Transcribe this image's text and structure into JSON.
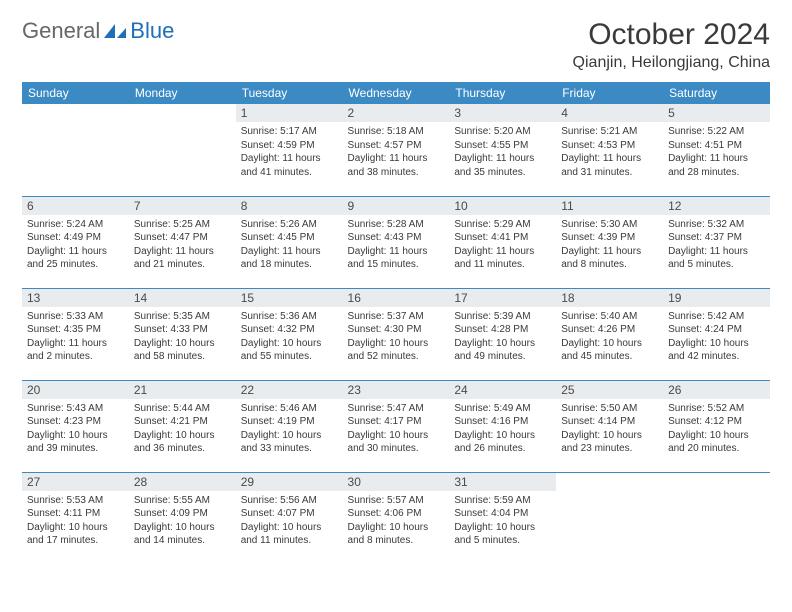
{
  "brand": {
    "part1": "General",
    "part2": "Blue"
  },
  "title": {
    "month": "October 2024",
    "location": "Qianjin, Heilongjiang, China"
  },
  "colors": {
    "header_bg": "#3b8ac4",
    "header_text": "#ffffff",
    "daynum_bg": "#e8ecef",
    "divider": "#3b8ac4",
    "brand_blue": "#1e6fb8",
    "brand_gray": "#676767"
  },
  "day_labels": [
    "Sunday",
    "Monday",
    "Tuesday",
    "Wednesday",
    "Thursday",
    "Friday",
    "Saturday"
  ],
  "weeks": [
    [
      {
        "n": "",
        "sr": "",
        "ss": "",
        "dl": ""
      },
      {
        "n": "",
        "sr": "",
        "ss": "",
        "dl": ""
      },
      {
        "n": "1",
        "sr": "Sunrise: 5:17 AM",
        "ss": "Sunset: 4:59 PM",
        "dl": "Daylight: 11 hours and 41 minutes."
      },
      {
        "n": "2",
        "sr": "Sunrise: 5:18 AM",
        "ss": "Sunset: 4:57 PM",
        "dl": "Daylight: 11 hours and 38 minutes."
      },
      {
        "n": "3",
        "sr": "Sunrise: 5:20 AM",
        "ss": "Sunset: 4:55 PM",
        "dl": "Daylight: 11 hours and 35 minutes."
      },
      {
        "n": "4",
        "sr": "Sunrise: 5:21 AM",
        "ss": "Sunset: 4:53 PM",
        "dl": "Daylight: 11 hours and 31 minutes."
      },
      {
        "n": "5",
        "sr": "Sunrise: 5:22 AM",
        "ss": "Sunset: 4:51 PM",
        "dl": "Daylight: 11 hours and 28 minutes."
      }
    ],
    [
      {
        "n": "6",
        "sr": "Sunrise: 5:24 AM",
        "ss": "Sunset: 4:49 PM",
        "dl": "Daylight: 11 hours and 25 minutes."
      },
      {
        "n": "7",
        "sr": "Sunrise: 5:25 AM",
        "ss": "Sunset: 4:47 PM",
        "dl": "Daylight: 11 hours and 21 minutes."
      },
      {
        "n": "8",
        "sr": "Sunrise: 5:26 AM",
        "ss": "Sunset: 4:45 PM",
        "dl": "Daylight: 11 hours and 18 minutes."
      },
      {
        "n": "9",
        "sr": "Sunrise: 5:28 AM",
        "ss": "Sunset: 4:43 PM",
        "dl": "Daylight: 11 hours and 15 minutes."
      },
      {
        "n": "10",
        "sr": "Sunrise: 5:29 AM",
        "ss": "Sunset: 4:41 PM",
        "dl": "Daylight: 11 hours and 11 minutes."
      },
      {
        "n": "11",
        "sr": "Sunrise: 5:30 AM",
        "ss": "Sunset: 4:39 PM",
        "dl": "Daylight: 11 hours and 8 minutes."
      },
      {
        "n": "12",
        "sr": "Sunrise: 5:32 AM",
        "ss": "Sunset: 4:37 PM",
        "dl": "Daylight: 11 hours and 5 minutes."
      }
    ],
    [
      {
        "n": "13",
        "sr": "Sunrise: 5:33 AM",
        "ss": "Sunset: 4:35 PM",
        "dl": "Daylight: 11 hours and 2 minutes."
      },
      {
        "n": "14",
        "sr": "Sunrise: 5:35 AM",
        "ss": "Sunset: 4:33 PM",
        "dl": "Daylight: 10 hours and 58 minutes."
      },
      {
        "n": "15",
        "sr": "Sunrise: 5:36 AM",
        "ss": "Sunset: 4:32 PM",
        "dl": "Daylight: 10 hours and 55 minutes."
      },
      {
        "n": "16",
        "sr": "Sunrise: 5:37 AM",
        "ss": "Sunset: 4:30 PM",
        "dl": "Daylight: 10 hours and 52 minutes."
      },
      {
        "n": "17",
        "sr": "Sunrise: 5:39 AM",
        "ss": "Sunset: 4:28 PM",
        "dl": "Daylight: 10 hours and 49 minutes."
      },
      {
        "n": "18",
        "sr": "Sunrise: 5:40 AM",
        "ss": "Sunset: 4:26 PM",
        "dl": "Daylight: 10 hours and 45 minutes."
      },
      {
        "n": "19",
        "sr": "Sunrise: 5:42 AM",
        "ss": "Sunset: 4:24 PM",
        "dl": "Daylight: 10 hours and 42 minutes."
      }
    ],
    [
      {
        "n": "20",
        "sr": "Sunrise: 5:43 AM",
        "ss": "Sunset: 4:23 PM",
        "dl": "Daylight: 10 hours and 39 minutes."
      },
      {
        "n": "21",
        "sr": "Sunrise: 5:44 AM",
        "ss": "Sunset: 4:21 PM",
        "dl": "Daylight: 10 hours and 36 minutes."
      },
      {
        "n": "22",
        "sr": "Sunrise: 5:46 AM",
        "ss": "Sunset: 4:19 PM",
        "dl": "Daylight: 10 hours and 33 minutes."
      },
      {
        "n": "23",
        "sr": "Sunrise: 5:47 AM",
        "ss": "Sunset: 4:17 PM",
        "dl": "Daylight: 10 hours and 30 minutes."
      },
      {
        "n": "24",
        "sr": "Sunrise: 5:49 AM",
        "ss": "Sunset: 4:16 PM",
        "dl": "Daylight: 10 hours and 26 minutes."
      },
      {
        "n": "25",
        "sr": "Sunrise: 5:50 AM",
        "ss": "Sunset: 4:14 PM",
        "dl": "Daylight: 10 hours and 23 minutes."
      },
      {
        "n": "26",
        "sr": "Sunrise: 5:52 AM",
        "ss": "Sunset: 4:12 PM",
        "dl": "Daylight: 10 hours and 20 minutes."
      }
    ],
    [
      {
        "n": "27",
        "sr": "Sunrise: 5:53 AM",
        "ss": "Sunset: 4:11 PM",
        "dl": "Daylight: 10 hours and 17 minutes."
      },
      {
        "n": "28",
        "sr": "Sunrise: 5:55 AM",
        "ss": "Sunset: 4:09 PM",
        "dl": "Daylight: 10 hours and 14 minutes."
      },
      {
        "n": "29",
        "sr": "Sunrise: 5:56 AM",
        "ss": "Sunset: 4:07 PM",
        "dl": "Daylight: 10 hours and 11 minutes."
      },
      {
        "n": "30",
        "sr": "Sunrise: 5:57 AM",
        "ss": "Sunset: 4:06 PM",
        "dl": "Daylight: 10 hours and 8 minutes."
      },
      {
        "n": "31",
        "sr": "Sunrise: 5:59 AM",
        "ss": "Sunset: 4:04 PM",
        "dl": "Daylight: 10 hours and 5 minutes."
      },
      {
        "n": "",
        "sr": "",
        "ss": "",
        "dl": ""
      },
      {
        "n": "",
        "sr": "",
        "ss": "",
        "dl": ""
      }
    ]
  ]
}
